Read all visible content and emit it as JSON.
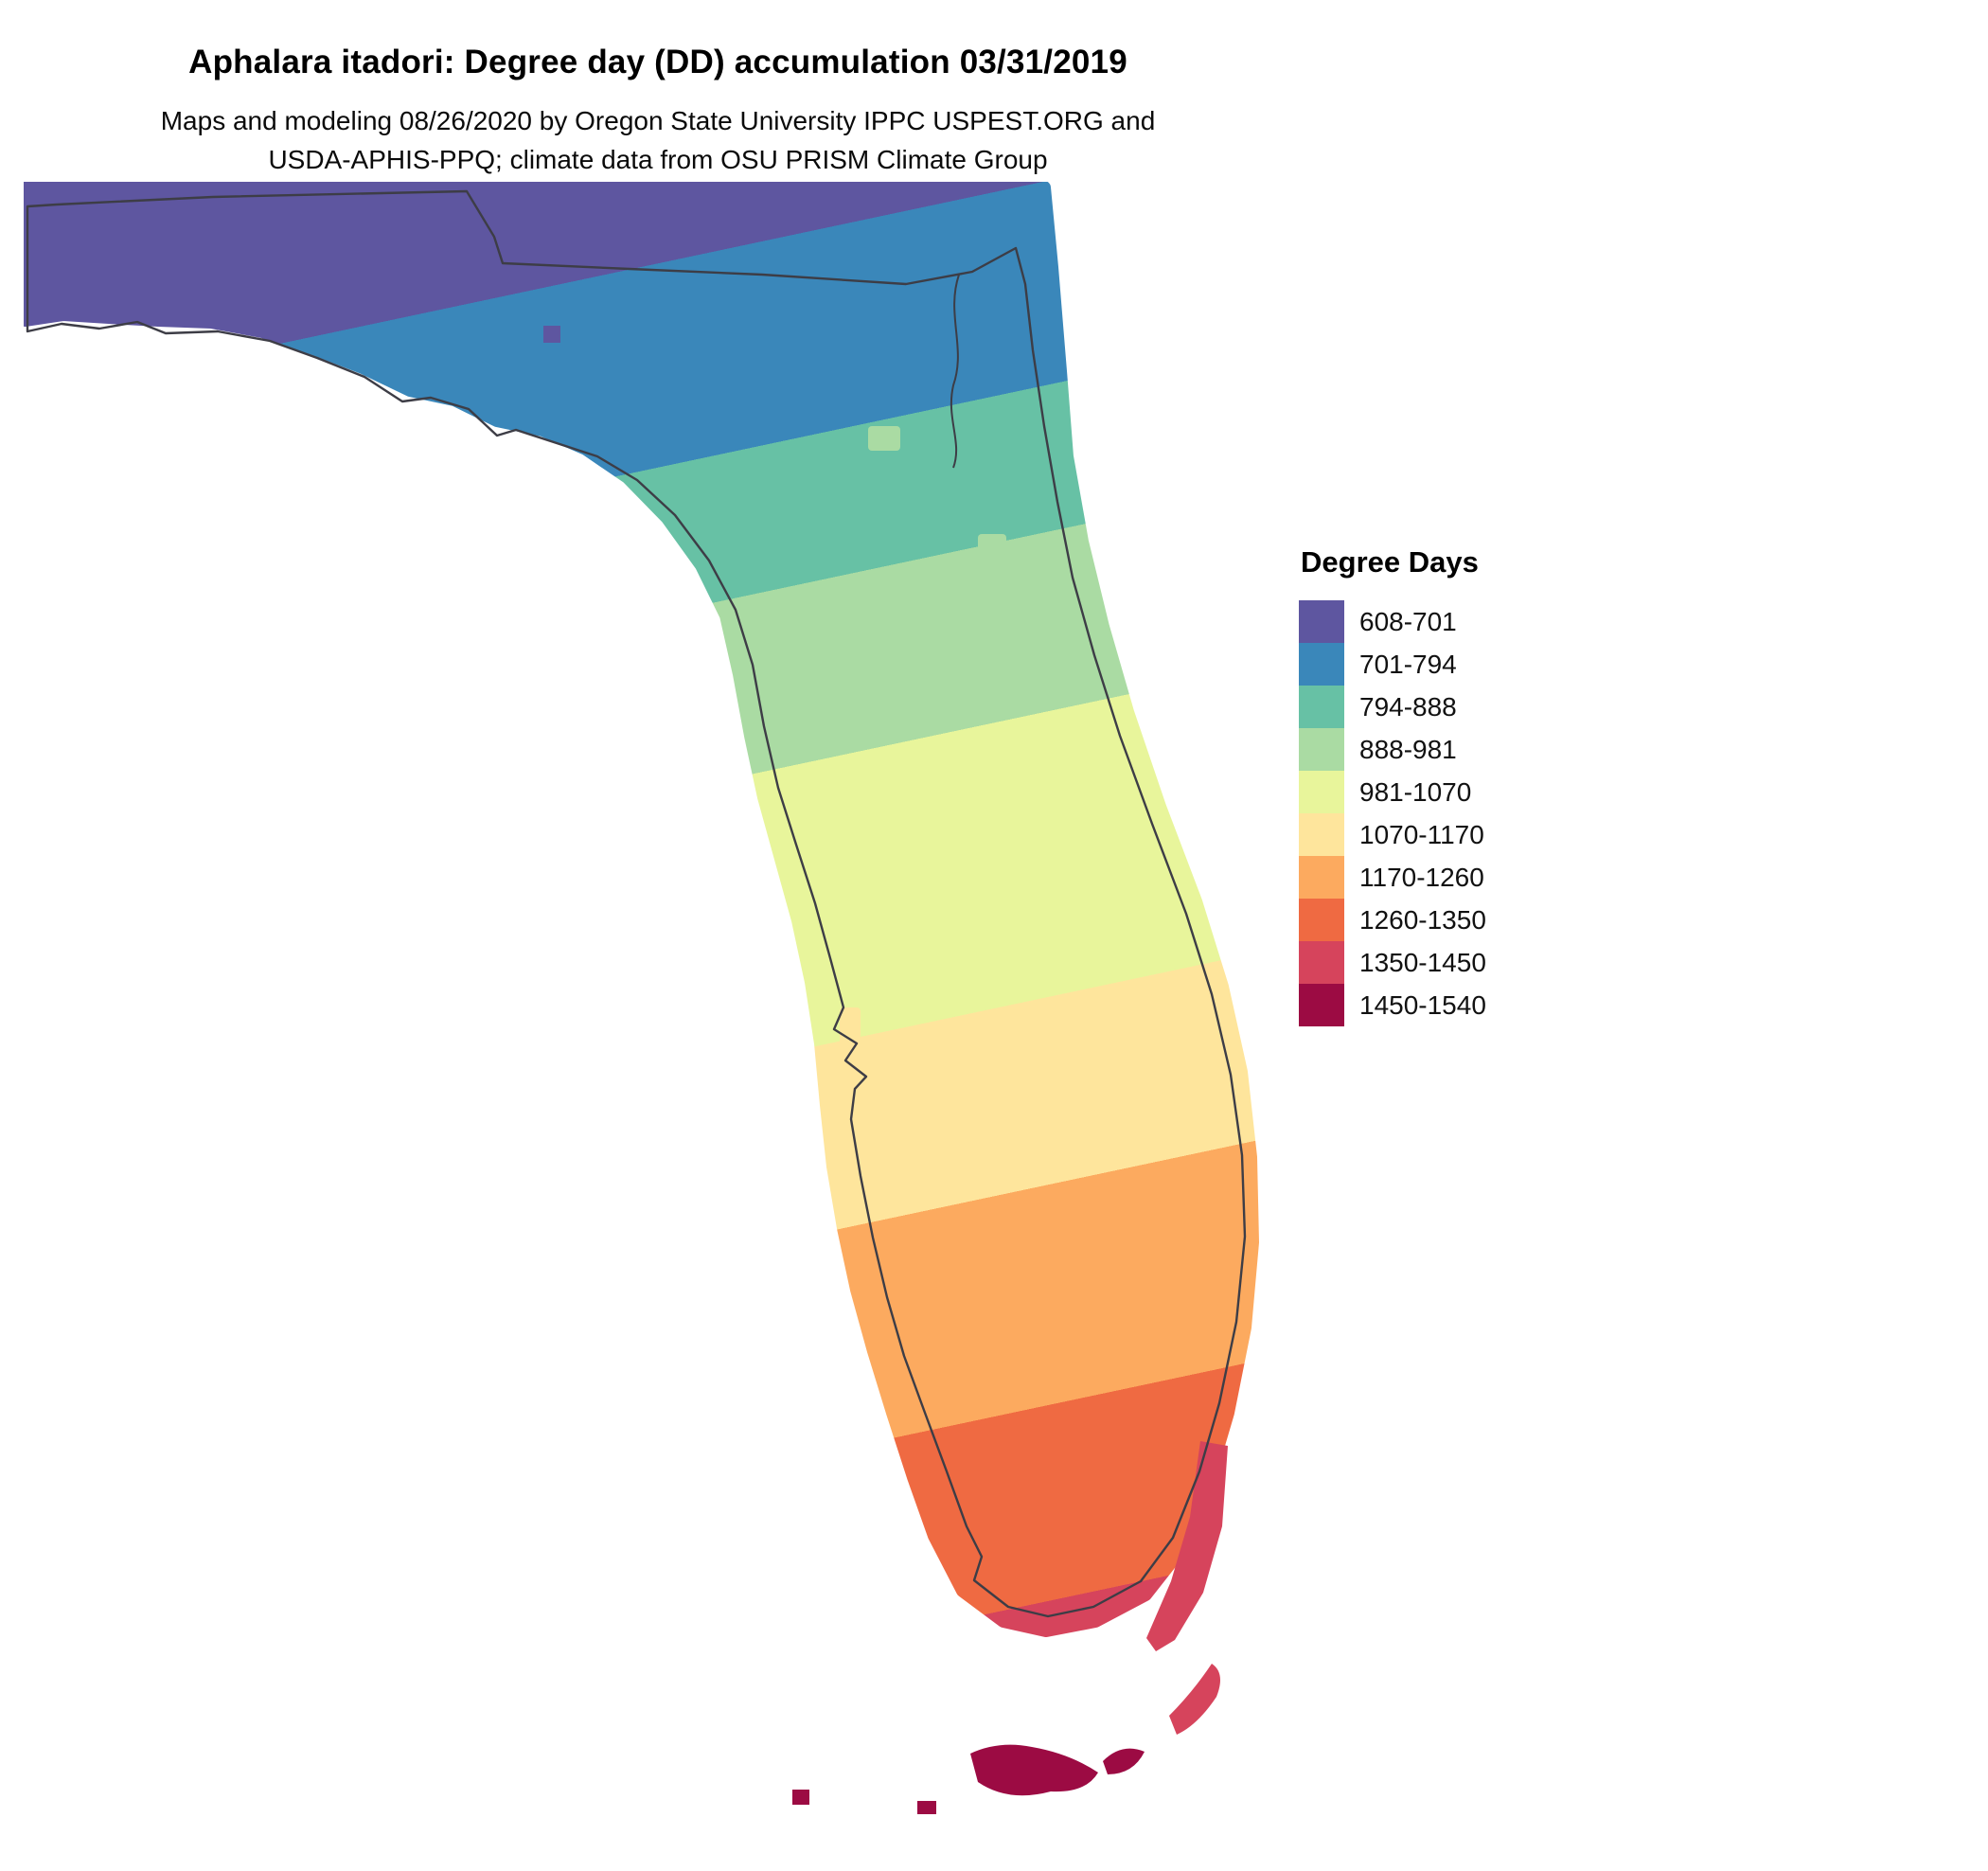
{
  "header": {
    "title": "Aphalara itadori: Degree day (DD) accumulation 03/31/2019",
    "subtitle_line1": "Maps and modeling 08/26/2020 by Oregon State University IPPC USPEST.ORG and",
    "subtitle_line2": "USDA-APHIS-PPQ; climate data from OSU PRISM Climate Group"
  },
  "legend": {
    "title": "Degree Days",
    "items": [
      {
        "range": "608-701",
        "color": "#5e56a0"
      },
      {
        "range": "701-794",
        "color": "#3a87ba"
      },
      {
        "range": "794-888",
        "color": "#67c1a5"
      },
      {
        "range": "888-981",
        "color": "#aadba3"
      },
      {
        "range": "981-1070",
        "color": "#e8f59b"
      },
      {
        "range": "1070-1170",
        "color": "#fee59c"
      },
      {
        "range": "1170-1260",
        "color": "#fcaa5f"
      },
      {
        "range": "1260-1350",
        "color": "#ef6a42"
      },
      {
        "range": "1350-1450",
        "color": "#d6445c"
      },
      {
        "range": "1450-1540",
        "color": "#9c0b43"
      }
    ]
  },
  "map": {
    "band_breaks": [
      0,
      0.085,
      0.21,
      0.3,
      0.41,
      0.585,
      0.7,
      0.835,
      0.955,
      0.985,
      1
    ],
    "outline_color": "#3d3d46"
  }
}
